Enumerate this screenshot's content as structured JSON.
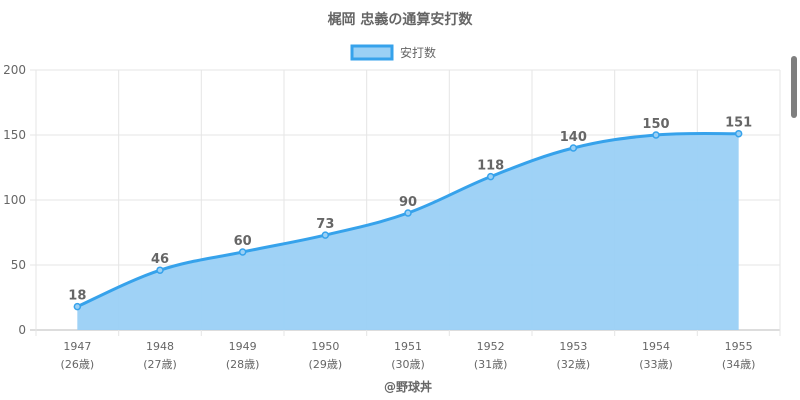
{
  "chart_data": {
    "type": "area",
    "title": "梶岡 忠義の通算安打数",
    "legend": {
      "label": "安打数",
      "position": "top"
    },
    "categories": [
      "1947",
      "1948",
      "1949",
      "1950",
      "1951",
      "1952",
      "1953",
      "1954",
      "1955"
    ],
    "sublabels": [
      "(26歳)",
      "(27歳)",
      "(28歳)",
      "(29歳)",
      "(30歳)",
      "(31歳)",
      "(32歳)",
      "(33歳)",
      "(34歳)"
    ],
    "series": [
      {
        "name": "安打数",
        "values": [
          18,
          46,
          60,
          73,
          90,
          118,
          140,
          150,
          151
        ]
      }
    ],
    "ylim": [
      0,
      200
    ],
    "yticks": [
      0,
      50,
      100,
      150,
      200
    ],
    "grid": true,
    "colors": {
      "line": "#36a2eb",
      "fill": "#9ad0f5"
    },
    "footer": "@野球丼"
  }
}
